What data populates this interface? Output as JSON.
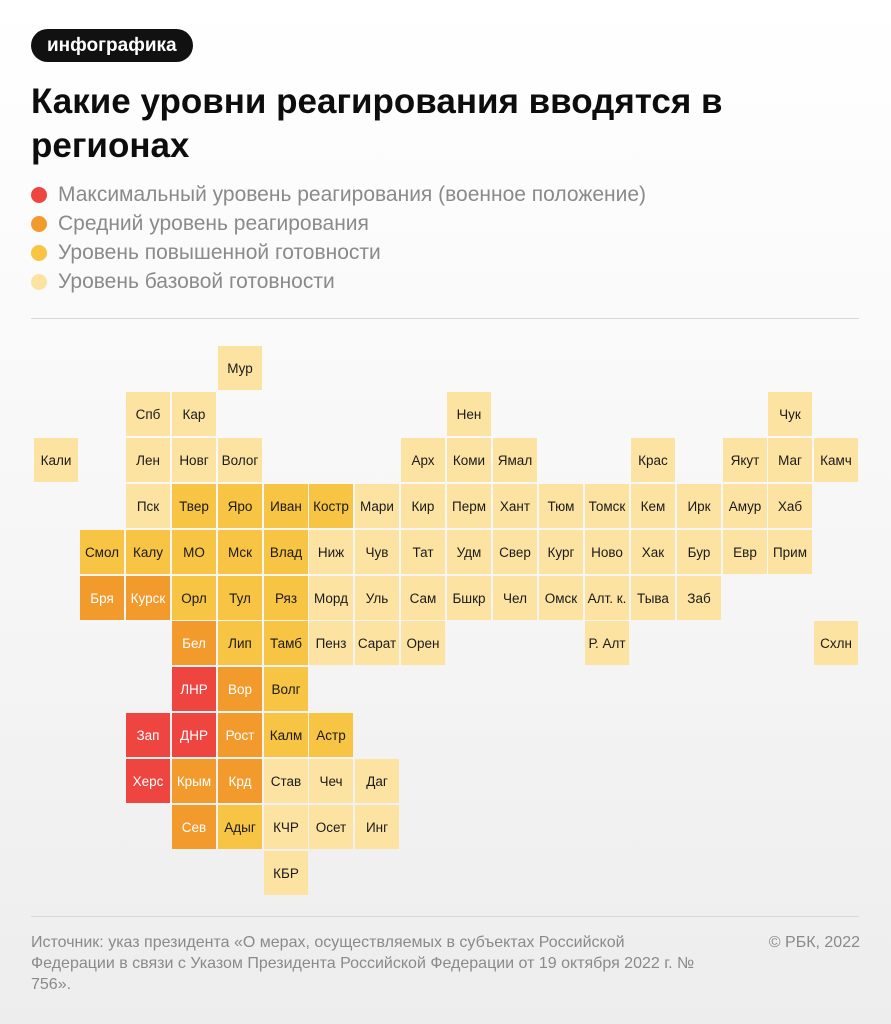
{
  "badge": "инфографика",
  "title": "Какие уровни реагирования вводятся в регионах",
  "levels": {
    "max": {
      "label": "Максимальный уровень реагирования (военное положение)",
      "color": "#ee4540"
    },
    "mid": {
      "label": "Средний уровень реагирования",
      "color": "#f39a2c"
    },
    "high": {
      "label": "Уровень повышенной готовности",
      "color": "#f7c443"
    },
    "base": {
      "label": "Уровень базовой готовности",
      "color": "#fde3a2"
    }
  },
  "regions": [
    {
      "name": "Мур",
      "col": 4,
      "row": 0,
      "level": "base"
    },
    {
      "name": "Спб",
      "col": 2,
      "row": 1,
      "level": "base"
    },
    {
      "name": "Кар",
      "col": 3,
      "row": 1,
      "level": "base"
    },
    {
      "name": "Нен",
      "col": 9,
      "row": 1,
      "level": "base"
    },
    {
      "name": "Чук",
      "col": 16,
      "row": 1,
      "level": "base"
    },
    {
      "name": "Кали",
      "col": 0,
      "row": 2,
      "level": "base"
    },
    {
      "name": "Лен",
      "col": 2,
      "row": 2,
      "level": "base"
    },
    {
      "name": "Новг",
      "col": 3,
      "row": 2,
      "level": "base"
    },
    {
      "name": "Волог",
      "col": 4,
      "row": 2,
      "level": "base"
    },
    {
      "name": "Арх",
      "col": 8,
      "row": 2,
      "level": "base"
    },
    {
      "name": "Коми",
      "col": 9,
      "row": 2,
      "level": "base"
    },
    {
      "name": "Ямал",
      "col": 10,
      "row": 2,
      "level": "base"
    },
    {
      "name": "Крас",
      "col": 13,
      "row": 2,
      "level": "base"
    },
    {
      "name": "Якут",
      "col": 15,
      "row": 2,
      "level": "base"
    },
    {
      "name": "Маг",
      "col": 16,
      "row": 2,
      "level": "base"
    },
    {
      "name": "Камч",
      "col": 17,
      "row": 2,
      "level": "base"
    },
    {
      "name": "Пск",
      "col": 2,
      "row": 3,
      "level": "base"
    },
    {
      "name": "Твер",
      "col": 3,
      "row": 3,
      "level": "high"
    },
    {
      "name": "Яро",
      "col": 4,
      "row": 3,
      "level": "high"
    },
    {
      "name": "Иван",
      "col": 5,
      "row": 3,
      "level": "high"
    },
    {
      "name": "Костр",
      "col": 6,
      "row": 3,
      "level": "high"
    },
    {
      "name": "Мари",
      "col": 7,
      "row": 3,
      "level": "base"
    },
    {
      "name": "Кир",
      "col": 8,
      "row": 3,
      "level": "base"
    },
    {
      "name": "Перм",
      "col": 9,
      "row": 3,
      "level": "base"
    },
    {
      "name": "Хант",
      "col": 10,
      "row": 3,
      "level": "base"
    },
    {
      "name": "Тюм",
      "col": 11,
      "row": 3,
      "level": "base"
    },
    {
      "name": "Томск",
      "col": 12,
      "row": 3,
      "level": "base"
    },
    {
      "name": "Кем",
      "col": 13,
      "row": 3,
      "level": "base"
    },
    {
      "name": "Ирк",
      "col": 14,
      "row": 3,
      "level": "base"
    },
    {
      "name": "Амур",
      "col": 15,
      "row": 3,
      "level": "base"
    },
    {
      "name": "Хаб",
      "col": 16,
      "row": 3,
      "level": "base"
    },
    {
      "name": "Смол",
      "col": 1,
      "row": 4,
      "level": "high"
    },
    {
      "name": "Калу",
      "col": 2,
      "row": 4,
      "level": "high"
    },
    {
      "name": "МО",
      "col": 3,
      "row": 4,
      "level": "high"
    },
    {
      "name": "Мск",
      "col": 4,
      "row": 4,
      "level": "high"
    },
    {
      "name": "Влад",
      "col": 5,
      "row": 4,
      "level": "high"
    },
    {
      "name": "Ниж",
      "col": 6,
      "row": 4,
      "level": "base"
    },
    {
      "name": "Чув",
      "col": 7,
      "row": 4,
      "level": "base"
    },
    {
      "name": "Тат",
      "col": 8,
      "row": 4,
      "level": "base"
    },
    {
      "name": "Удм",
      "col": 9,
      "row": 4,
      "level": "base"
    },
    {
      "name": "Свер",
      "col": 10,
      "row": 4,
      "level": "base"
    },
    {
      "name": "Кург",
      "col": 11,
      "row": 4,
      "level": "base"
    },
    {
      "name": "Ново",
      "col": 12,
      "row": 4,
      "level": "base"
    },
    {
      "name": "Хак",
      "col": 13,
      "row": 4,
      "level": "base"
    },
    {
      "name": "Бур",
      "col": 14,
      "row": 4,
      "level": "base"
    },
    {
      "name": "Евр",
      "col": 15,
      "row": 4,
      "level": "base"
    },
    {
      "name": "Прим",
      "col": 16,
      "row": 4,
      "level": "base"
    },
    {
      "name": "Бря",
      "col": 1,
      "row": 5,
      "level": "mid"
    },
    {
      "name": "Курск",
      "col": 2,
      "row": 5,
      "level": "mid"
    },
    {
      "name": "Орл",
      "col": 3,
      "row": 5,
      "level": "high"
    },
    {
      "name": "Тул",
      "col": 4,
      "row": 5,
      "level": "high"
    },
    {
      "name": "Ряз",
      "col": 5,
      "row": 5,
      "level": "high"
    },
    {
      "name": "Морд",
      "col": 6,
      "row": 5,
      "level": "base"
    },
    {
      "name": "Уль",
      "col": 7,
      "row": 5,
      "level": "base"
    },
    {
      "name": "Сам",
      "col": 8,
      "row": 5,
      "level": "base"
    },
    {
      "name": "Бшкр",
      "col": 9,
      "row": 5,
      "level": "base"
    },
    {
      "name": "Чел",
      "col": 10,
      "row": 5,
      "level": "base"
    },
    {
      "name": "Омск",
      "col": 11,
      "row": 5,
      "level": "base"
    },
    {
      "name": "Алт. к.",
      "col": 12,
      "row": 5,
      "level": "base"
    },
    {
      "name": "Тыва",
      "col": 13,
      "row": 5,
      "level": "base"
    },
    {
      "name": "Заб",
      "col": 14,
      "row": 5,
      "level": "base"
    },
    {
      "name": "Бел",
      "col": 3,
      "row": 6,
      "level": "mid"
    },
    {
      "name": "Лип",
      "col": 4,
      "row": 6,
      "level": "high"
    },
    {
      "name": "Тамб",
      "col": 5,
      "row": 6,
      "level": "high"
    },
    {
      "name": "Пенз",
      "col": 6,
      "row": 6,
      "level": "base"
    },
    {
      "name": "Сарат",
      "col": 7,
      "row": 6,
      "level": "base"
    },
    {
      "name": "Орен",
      "col": 8,
      "row": 6,
      "level": "base"
    },
    {
      "name": "Р. Алт",
      "col": 12,
      "row": 6,
      "level": "base"
    },
    {
      "name": "Схлн",
      "col": 17,
      "row": 6,
      "level": "base"
    },
    {
      "name": "ЛНР",
      "col": 3,
      "row": 7,
      "level": "max"
    },
    {
      "name": "Вор",
      "col": 4,
      "row": 7,
      "level": "mid"
    },
    {
      "name": "Волг",
      "col": 5,
      "row": 7,
      "level": "high"
    },
    {
      "name": "Зап",
      "col": 2,
      "row": 8,
      "level": "max"
    },
    {
      "name": "ДНР",
      "col": 3,
      "row": 8,
      "level": "max"
    },
    {
      "name": "Рост",
      "col": 4,
      "row": 8,
      "level": "mid"
    },
    {
      "name": "Калм",
      "col": 5,
      "row": 8,
      "level": "high"
    },
    {
      "name": "Астр",
      "col": 6,
      "row": 8,
      "level": "high"
    },
    {
      "name": "Херс",
      "col": 2,
      "row": 9,
      "level": "max"
    },
    {
      "name": "Крым",
      "col": 3,
      "row": 9,
      "level": "mid"
    },
    {
      "name": "Крд",
      "col": 4,
      "row": 9,
      "level": "mid"
    },
    {
      "name": "Став",
      "col": 5,
      "row": 9,
      "level": "base"
    },
    {
      "name": "Чеч",
      "col": 6,
      "row": 9,
      "level": "base"
    },
    {
      "name": "Даг",
      "col": 7,
      "row": 9,
      "level": "base"
    },
    {
      "name": "Сев",
      "col": 3,
      "row": 10,
      "level": "mid"
    },
    {
      "name": "Адыг",
      "col": 4,
      "row": 10,
      "level": "high"
    },
    {
      "name": "КЧР",
      "col": 5,
      "row": 10,
      "level": "base"
    },
    {
      "name": "Осет",
      "col": 6,
      "row": 10,
      "level": "base"
    },
    {
      "name": "Инг",
      "col": 7,
      "row": 10,
      "level": "base"
    },
    {
      "name": "КБР",
      "col": 5,
      "row": 11,
      "level": "base"
    }
  ],
  "source": "Источник: указ президента «О мерах, осуществляемых в субъектах Российской Федерации в связи с Указом Президента Российской Федерации от 19 октября 2022 г. № 756».",
  "copyright": "© РБК, 2022"
}
